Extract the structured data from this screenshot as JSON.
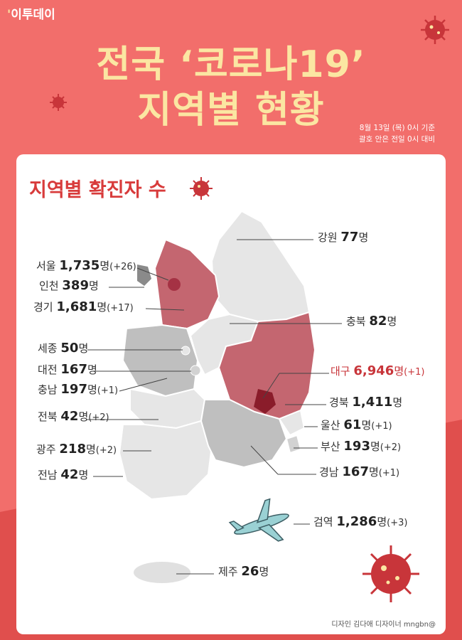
{
  "header": {
    "logo": "이투데이",
    "title_line1": "전국 ‘코로나19’",
    "title_line2": "지역별 현황",
    "date_line1": "8월 13일 (목) 0시 기준",
    "date_line2": "괄호 안은 전일 0시 대비"
  },
  "card": {
    "title": "지역별 확진자 수",
    "unit": "명",
    "regions": [
      {
        "name": "강원",
        "count": "77",
        "delta": ""
      },
      {
        "name": "서울",
        "count": "1,735",
        "delta": "(+26)"
      },
      {
        "name": "인천",
        "count": "389",
        "delta": ""
      },
      {
        "name": "경기",
        "count": "1,681",
        "delta": "(+17)"
      },
      {
        "name": "충북",
        "count": "82",
        "delta": ""
      },
      {
        "name": "세종",
        "count": "50",
        "delta": ""
      },
      {
        "name": "대전",
        "count": "167",
        "delta": ""
      },
      {
        "name": "대구",
        "count": "6,946",
        "delta": "(+1)"
      },
      {
        "name": "충남",
        "count": "197",
        "delta": "(+1)"
      },
      {
        "name": "경북",
        "count": "1,411",
        "delta": ""
      },
      {
        "name": "전북",
        "count": "42",
        "delta": "(+2)"
      },
      {
        "name": "울산",
        "count": "61",
        "delta": "(+1)"
      },
      {
        "name": "광주",
        "count": "218",
        "delta": "(+2)"
      },
      {
        "name": "부산",
        "count": "193",
        "delta": "(+2)"
      },
      {
        "name": "전남",
        "count": "42",
        "delta": ""
      },
      {
        "name": "경남",
        "count": "167",
        "delta": "(+1)"
      },
      {
        "name": "검역",
        "count": "1,286",
        "delta": "(+3)"
      },
      {
        "name": "제주",
        "count": "26",
        "delta": ""
      }
    ],
    "credit": "디자인 김다애 디자이너 mngbn@"
  },
  "colors": {
    "background": "#f26e6b",
    "background_lower": "#e04f4d",
    "title": "#fbe6a2",
    "highlight": "#c8353a",
    "map_dark_region": "#c46670",
    "map_daegu": "#8a1c2a",
    "map_light_region": "#e4e4e4",
    "map_mid_region": "#bfbfbf"
  },
  "icons": [
    "virus-icon",
    "airplane-icon"
  ]
}
